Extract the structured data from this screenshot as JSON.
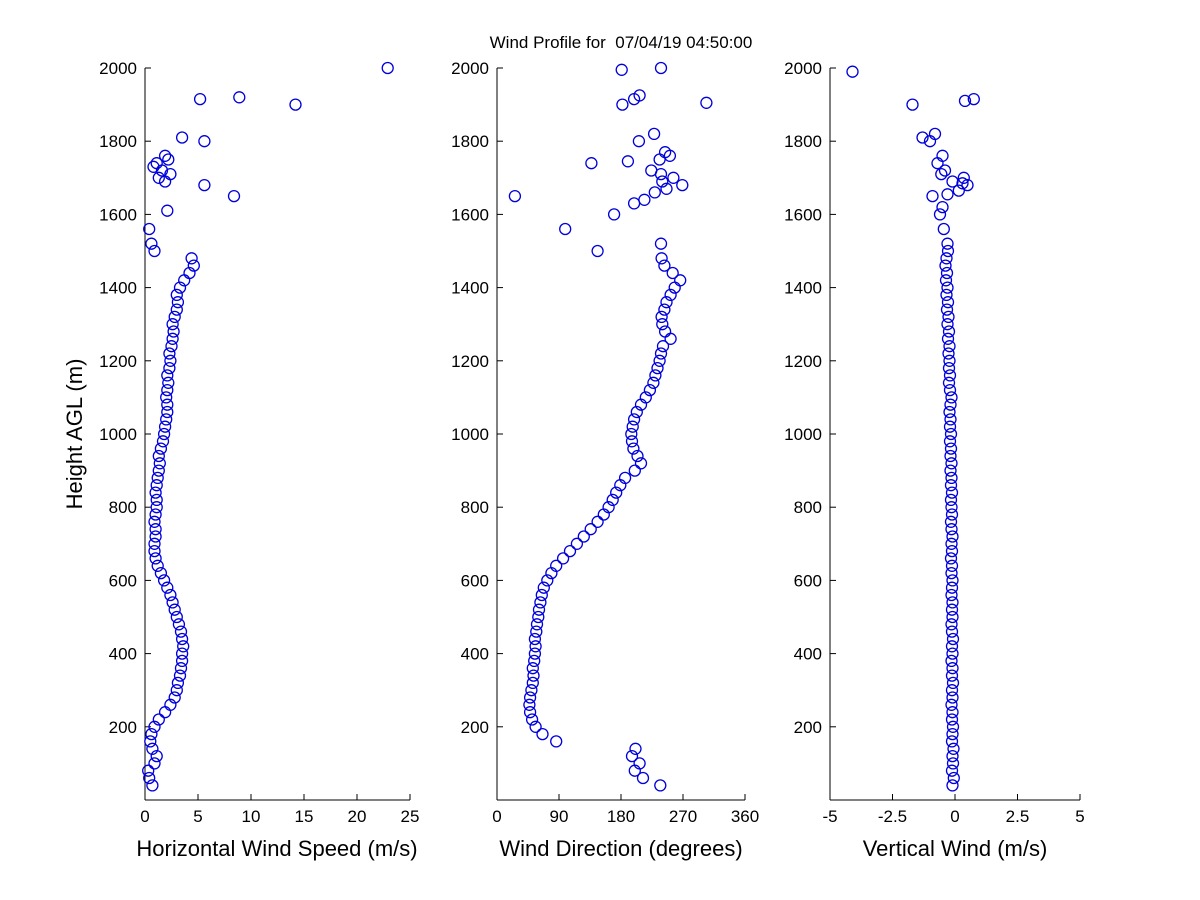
{
  "colors": {
    "marker": "#0000dd",
    "axis": "#000000",
    "background": "#ffffff"
  },
  "chart_data": {
    "type": "scatter",
    "title": "Wind Profile for  07/04/19 04:50:00",
    "marker": "open-circle",
    "grid": false,
    "legend": false,
    "ylabel": "Height AGL (m)",
    "ylim": [
      0,
      2000
    ],
    "ytick_values": [
      0,
      200,
      400,
      600,
      800,
      1000,
      1200,
      1400,
      1600,
      1800,
      2000
    ],
    "ytick_labels": [
      "",
      "200",
      "400",
      "600",
      "800",
      "1000",
      "1200",
      "1400",
      "1600",
      "1800",
      "2000"
    ],
    "dense_heights": [
      40,
      60,
      80,
      100,
      120,
      140,
      160,
      180,
      200,
      220,
      240,
      260,
      280,
      300,
      320,
      340,
      360,
      380,
      400,
      420,
      440,
      460,
      480,
      500,
      520,
      540,
      560,
      580,
      600,
      620,
      640,
      660,
      680,
      700,
      720,
      740,
      760,
      780,
      800,
      820,
      840,
      860,
      880,
      900,
      920,
      940,
      960,
      980,
      1000,
      1020,
      1040,
      1060,
      1080,
      1100,
      1120,
      1140,
      1160,
      1180,
      1200,
      1220,
      1240,
      1260,
      1280,
      1300,
      1320,
      1340,
      1360,
      1380,
      1400,
      1420,
      1440,
      1460,
      1480,
      1500,
      1520
    ],
    "charts": [
      {
        "name": "horizontal-wind-speed",
        "xlabel": "Horizontal Wind Speed (m/s)",
        "xlim": [
          0,
          25
        ],
        "xtick_values": [
          0,
          5,
          10,
          15,
          20,
          25
        ],
        "xtick_labels": [
          "0",
          "5",
          "10",
          "15",
          "20",
          "25"
        ],
        "dense_values": [
          0.7,
          0.4,
          0.3,
          0.9,
          1.1,
          0.7,
          0.5,
          0.6,
          0.9,
          1.3,
          1.9,
          2.4,
          2.8,
          3.0,
          3.1,
          3.3,
          3.4,
          3.5,
          3.5,
          3.6,
          3.5,
          3.4,
          3.2,
          3.0,
          2.8,
          2.6,
          2.4,
          2.1,
          1.8,
          1.5,
          1.2,
          1.0,
          0.9,
          0.9,
          1.0,
          1.0,
          0.9,
          1.0,
          1.1,
          1.1,
          1.0,
          1.1,
          1.2,
          1.3,
          1.4,
          1.3,
          1.5,
          1.7,
          1.8,
          1.9,
          2.0,
          2.1,
          2.1,
          2.0,
          2.1,
          2.2,
          2.1,
          2.3,
          2.4,
          2.3,
          2.5,
          2.6,
          2.7,
          2.6,
          2.8,
          3.0,
          3.1,
          3.0,
          3.3,
          3.7,
          4.2,
          4.6,
          4.4,
          0.9,
          0.6
        ],
        "extra_points": [
          [
            0.4,
            1560
          ],
          [
            2.1,
            1610
          ],
          [
            8.4,
            1650
          ],
          [
            5.6,
            1680
          ],
          [
            1.9,
            1690
          ],
          [
            1.3,
            1700
          ],
          [
            2.4,
            1710
          ],
          [
            1.6,
            1720
          ],
          [
            0.8,
            1730
          ],
          [
            1.1,
            1740
          ],
          [
            2.2,
            1750
          ],
          [
            1.9,
            1760
          ],
          [
            5.6,
            1800
          ],
          [
            3.5,
            1810
          ],
          [
            14.2,
            1900
          ],
          [
            5.2,
            1915
          ],
          [
            8.9,
            1920
          ],
          [
            22.9,
            2000
          ]
        ]
      },
      {
        "name": "wind-direction",
        "xlabel": "Wind Direction (degrees)",
        "xlim": [
          0,
          360
        ],
        "xtick_values": [
          0,
          90,
          180,
          270,
          360
        ],
        "xtick_labels": [
          "0",
          "90",
          "180",
          "270",
          "360"
        ],
        "dense_values": [
          237,
          212,
          200,
          207,
          196,
          201,
          86,
          66,
          56,
          51,
          48,
          47,
          48,
          50,
          52,
          53,
          52,
          54,
          55,
          56,
          55,
          57,
          58,
          60,
          61,
          63,
          65,
          68,
          73,
          79,
          86,
          96,
          106,
          116,
          126,
          136,
          146,
          155,
          162,
          168,
          173,
          179,
          186,
          200,
          209,
          204,
          198,
          196,
          195,
          197,
          199,
          203,
          209,
          216,
          222,
          227,
          230,
          233,
          236,
          238,
          241,
          252,
          244,
          240,
          239,
          243,
          246,
          252,
          258,
          266,
          255,
          243,
          239,
          146,
          238
        ],
        "extra_points": [
          [
            99,
            1560
          ],
          [
            170,
            1600
          ],
          [
            199,
            1630
          ],
          [
            214,
            1640
          ],
          [
            26,
            1650
          ],
          [
            229,
            1660
          ],
          [
            246,
            1670
          ],
          [
            269,
            1680
          ],
          [
            240,
            1690
          ],
          [
            256,
            1700
          ],
          [
            238,
            1710
          ],
          [
            224,
            1720
          ],
          [
            137,
            1740
          ],
          [
            190,
            1745
          ],
          [
            236,
            1750
          ],
          [
            251,
            1760
          ],
          [
            244,
            1770
          ],
          [
            206,
            1800
          ],
          [
            228,
            1820
          ],
          [
            182,
            1900
          ],
          [
            304,
            1905
          ],
          [
            199,
            1915
          ],
          [
            207,
            1925
          ],
          [
            181,
            1995
          ],
          [
            238,
            2000
          ]
        ]
      },
      {
        "name": "vertical-wind",
        "xlabel": "Vertical Wind (m/s)",
        "xlim": [
          -5,
          5
        ],
        "xtick_values": [
          -5,
          -2.5,
          0,
          2.5,
          5
        ],
        "xtick_labels": [
          "-5",
          "-2.5",
          "0",
          "2.5",
          "5"
        ],
        "dense_values": [
          -0.1,
          -0.05,
          -0.12,
          -0.08,
          -0.1,
          -0.06,
          -0.12,
          -0.1,
          -0.08,
          -0.12,
          -0.1,
          -0.14,
          -0.1,
          -0.12,
          -0.08,
          -0.12,
          -0.1,
          -0.14,
          -0.1,
          -0.12,
          -0.08,
          -0.12,
          -0.14,
          -0.1,
          -0.12,
          -0.1,
          -0.14,
          -0.12,
          -0.1,
          -0.14,
          -0.12,
          -0.16,
          -0.12,
          -0.14,
          -0.1,
          -0.14,
          -0.16,
          -0.12,
          -0.14,
          -0.16,
          -0.12,
          -0.16,
          -0.14,
          -0.18,
          -0.14,
          -0.18,
          -0.16,
          -0.2,
          -0.16,
          -0.2,
          -0.18,
          -0.22,
          -0.18,
          -0.14,
          -0.2,
          -0.24,
          -0.2,
          -0.24,
          -0.22,
          -0.26,
          -0.22,
          -0.28,
          -0.24,
          -0.3,
          -0.26,
          -0.32,
          -0.28,
          -0.34,
          -0.3,
          -0.36,
          -0.32,
          -0.38,
          -0.34,
          -0.28,
          -0.3
        ],
        "extra_points": [
          [
            -0.45,
            1560
          ],
          [
            -0.6,
            1600
          ],
          [
            -0.5,
            1620
          ],
          [
            -0.9,
            1650
          ],
          [
            -0.3,
            1655
          ],
          [
            0.15,
            1665
          ],
          [
            0.5,
            1680
          ],
          [
            0.3,
            1685
          ],
          [
            -0.1,
            1690
          ],
          [
            0.35,
            1700
          ],
          [
            -0.55,
            1710
          ],
          [
            -0.4,
            1720
          ],
          [
            -0.7,
            1740
          ],
          [
            -0.5,
            1760
          ],
          [
            -1.0,
            1800
          ],
          [
            -1.3,
            1810
          ],
          [
            -0.8,
            1820
          ],
          [
            -1.7,
            1900
          ],
          [
            0.4,
            1910
          ],
          [
            0.75,
            1915
          ],
          [
            -4.1,
            1990
          ]
        ]
      }
    ]
  }
}
